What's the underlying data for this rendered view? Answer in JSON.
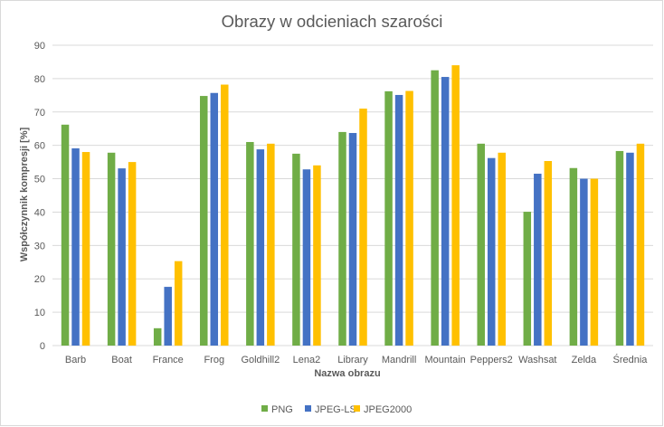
{
  "chart_data": {
    "type": "bar",
    "title": "Obrazy w odcieniach szarości",
    "xlabel": "Nazwa obrazu",
    "ylabel": "Współczynnik kompresji [%]",
    "ylim": [
      0,
      90
    ],
    "yticks": [
      0,
      10,
      20,
      30,
      40,
      50,
      60,
      70,
      80,
      90
    ],
    "grid": true,
    "legend_position": "bottom",
    "categories": [
      "Barb",
      "Boat",
      "France",
      "Frog",
      "Goldhill2",
      "Lena2",
      "Library",
      "Mandrill",
      "Mountain",
      "Peppers2",
      "Washsat",
      "Zelda",
      "Średnia"
    ],
    "series": [
      {
        "name": "PNG",
        "color": "#70ad47",
        "values": [
          66.2,
          57.8,
          5.2,
          74.8,
          61.0,
          57.5,
          64.0,
          76.2,
          82.5,
          60.5,
          40.1,
          53.2,
          58.3
        ]
      },
      {
        "name": "JPEG-LS",
        "color": "#4472c4",
        "values": [
          59.1,
          53.1,
          17.6,
          75.7,
          58.8,
          52.8,
          63.7,
          75.1,
          80.5,
          56.2,
          51.5,
          50.0,
          57.8
        ]
      },
      {
        "name": "JPEG2000",
        "color": "#ffc000",
        "values": [
          58.0,
          55.0,
          25.3,
          78.2,
          60.5,
          54.0,
          71.0,
          76.3,
          84.0,
          57.8,
          55.3,
          50.0,
          60.5
        ]
      }
    ]
  }
}
